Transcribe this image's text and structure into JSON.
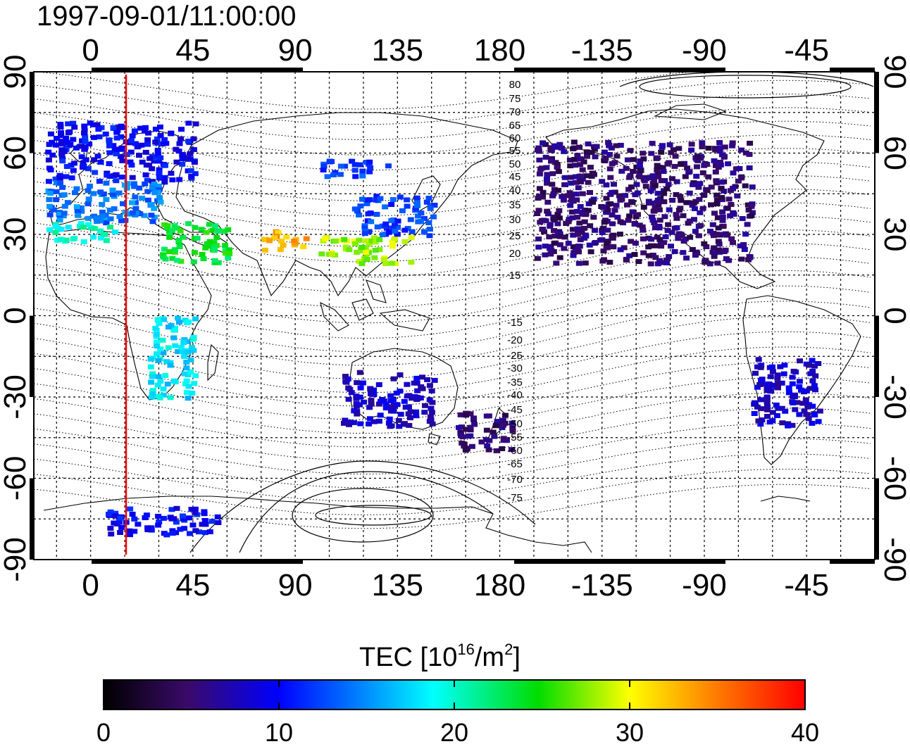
{
  "timestamp": "1997-09-01/11:00:00",
  "top_axis_ticks": [
    "0",
    "45",
    "90",
    "135",
    "180",
    "-135",
    "-90",
    "-45"
  ],
  "bottom_axis_ticks": [
    "0",
    "45",
    "90",
    "135",
    "180",
    "-135",
    "-90",
    "-45"
  ],
  "left_axis_ticks": [
    "90",
    "60",
    "30",
    "0",
    "-30",
    "-60",
    "-90"
  ],
  "right_axis_ticks": [
    "90",
    "60",
    "30",
    "0",
    "-30",
    "-60",
    "-90"
  ],
  "contour_labels_north": [
    "80",
    "75",
    "70",
    "65",
    "60",
    "55",
    "50",
    "45",
    "40",
    "35",
    "30",
    "25",
    "20",
    "15"
  ],
  "contour_labels_south": [
    "-15",
    "-20",
    "-25",
    "-30",
    "-35",
    "-40",
    "-45",
    "-50",
    "-55",
    "-60",
    "-65",
    "-70",
    "-75"
  ],
  "colorbar": {
    "title": "TEC  [10",
    "title_exp1": "16",
    "title_mid": "/m",
    "title_exp2": "2",
    "title_end": "]",
    "ticks": [
      "0",
      "10",
      "20",
      "30",
      "40"
    ],
    "min": 0,
    "max": 40
  },
  "terminator_color": "#ff0000",
  "chart_data": {
    "type": "heatmap",
    "title": "1997-09-01/11:00:00",
    "xlabel": "",
    "ylabel": "",
    "xlim": [
      -25,
      345
    ],
    "ylim": [
      -90,
      90
    ],
    "color_scale": [
      0,
      40
    ],
    "subsolar_meridian_lon": 15,
    "regions": [
      {
        "lon": [
          -20,
          45
        ],
        "lat": [
          50,
          72
        ],
        "tec": 10
      },
      {
        "lon": [
          -20,
          30
        ],
        "lat": [
          35,
          50
        ],
        "tec": 14
      },
      {
        "lon": [
          -20,
          10
        ],
        "lat": [
          28,
          35
        ],
        "tec": 20
      },
      {
        "lon": [
          30,
          60
        ],
        "lat": [
          20,
          35
        ],
        "tec": 24
      },
      {
        "lon": [
          75,
          95
        ],
        "lat": [
          25,
          32
        ],
        "tec": 33
      },
      {
        "lon": [
          100,
          140
        ],
        "lat": [
          20,
          30
        ],
        "tec": 28
      },
      {
        "lon": [
          115,
          150
        ],
        "lat": [
          30,
          45
        ],
        "tec": 12
      },
      {
        "lon": [
          100,
          130
        ],
        "lat": [
          52,
          58
        ],
        "tec": 12
      },
      {
        "lon": [
          25,
          45
        ],
        "lat": [
          -30,
          0
        ],
        "tec": 18
      },
      {
        "lon": [
          110,
          150
        ],
        "lat": [
          -40,
          -20
        ],
        "tec": 8
      },
      {
        "lon": [
          160,
          185
        ],
        "lat": [
          -50,
          -35
        ],
        "tec": 5
      },
      {
        "lon": [
          195,
          290
        ],
        "lat": [
          20,
          65
        ],
        "tec": 5
      },
      {
        "lon": [
          290,
          320
        ],
        "lat": [
          -40,
          -15
        ],
        "tec": 8
      },
      {
        "lon": [
          5,
          55
        ],
        "lat": [
          -80,
          -70
        ],
        "tec": 10
      }
    ]
  }
}
